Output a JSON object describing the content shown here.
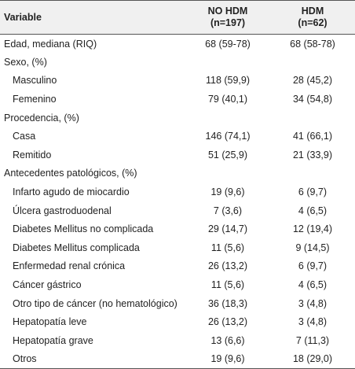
{
  "header": {
    "variable": "Variable",
    "col1_name": "NO HDM",
    "col1_n": "(n=197)",
    "col2_name": "HDM",
    "col2_n": "(n=62)"
  },
  "rows": [
    {
      "label": "Edad, mediana (RIQ)",
      "a": "68 (59-78)",
      "b": "68 (58-78)"
    },
    {
      "label": "Sexo, (%)",
      "a": "",
      "b": ""
    },
    {
      "label": "Masculino",
      "a": "118 (59,9)",
      "b": "28 (45,2)"
    },
    {
      "label": "Femenino",
      "a": "79 (40,1)",
      "b": "34 (54,8)"
    },
    {
      "label": "Procedencia, (%)",
      "a": "",
      "b": ""
    },
    {
      "label": "Casa",
      "a": "146 (74,1)",
      "b": "41 (66,1)"
    },
    {
      "label": "Remitido",
      "a": "51 (25,9)",
      "b": "21 (33,9)"
    },
    {
      "label": "Antecedentes patológicos, (%)",
      "a": "",
      "b": ""
    },
    {
      "label": "Infarto agudo de miocardio",
      "a": "19 (9,6)",
      "b": "6 (9,7)"
    },
    {
      "label": "Úlcera gastroduodenal",
      "a": "7 (3,6)",
      "b": "4 (6,5)"
    },
    {
      "label": "Diabetes Mellitus no complicada",
      "a": "29 (14,7)",
      "b": "12 (19,4)"
    },
    {
      "label": "Diabetes Mellitus complicada",
      "a": "11 (5,6)",
      "b": "9 (14,5)"
    },
    {
      "label": "Enfermedad renal crónica",
      "a": "26 (13,2)",
      "b": "6 (9,7)"
    },
    {
      "label": "Cáncer gástrico",
      "a": "11 (5,6)",
      "b": "4 (6,5)"
    },
    {
      "label": "Otro tipo de cáncer (no hematológico)",
      "a": "36 (18,3)",
      "b": "3 (4,8)"
    },
    {
      "label": "Hepatopatía leve",
      "a": "26 (13,2)",
      "b": "3 (4,8)"
    },
    {
      "label": "Hepatopatía grave",
      "a": "13 (6,6)",
      "b": "7 (11,3)"
    },
    {
      "label": "Otros",
      "a": "19 (9,6)",
      "b": "18 (29,0)"
    }
  ]
}
